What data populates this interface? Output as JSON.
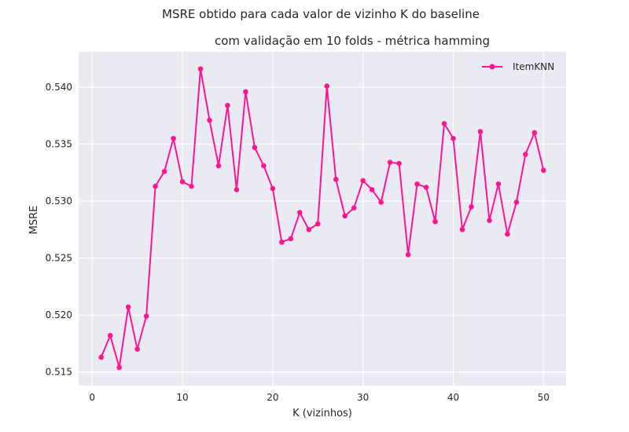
{
  "chart_data": {
    "type": "line",
    "title_line1": "MSRE obtido para cada valor de vizinho K  do baseline",
    "title_line2": "com validação em 10 folds - métrica hamming",
    "xlabel": "K (vizinhos)",
    "ylabel": "MSRE",
    "xlim": [
      -1.5,
      52.5
    ],
    "ylim": [
      0.5138,
      0.5431
    ],
    "xticks": [
      0,
      10,
      20,
      30,
      40,
      50
    ],
    "yticks": [
      0.515,
      0.52,
      0.525,
      0.53,
      0.535,
      0.54
    ],
    "ytick_labels": [
      "0.515",
      "0.520",
      "0.525",
      "0.530",
      "0.535",
      "0.540"
    ],
    "grid": true,
    "legend_position": "top-right",
    "series": [
      {
        "name": "ItemKNN",
        "color": "#ff1493",
        "marker": "circle",
        "x": [
          1,
          2,
          3,
          4,
          5,
          6,
          7,
          8,
          9,
          10,
          11,
          12,
          13,
          14,
          15,
          16,
          17,
          18,
          19,
          20,
          21,
          22,
          23,
          24,
          25,
          26,
          27,
          28,
          29,
          30,
          31,
          32,
          33,
          34,
          35,
          36,
          37,
          38,
          39,
          40,
          41,
          42,
          43,
          44,
          45,
          46,
          47,
          48,
          49,
          50
        ],
        "y": [
          0.5163,
          0.5182,
          0.5154,
          0.5207,
          0.517,
          0.5199,
          0.5313,
          0.5326,
          0.5355,
          0.5317,
          0.5313,
          0.5416,
          0.5371,
          0.5331,
          0.5384,
          0.531,
          0.5396,
          0.5347,
          0.5331,
          0.5311,
          0.5264,
          0.5267,
          0.529,
          0.5275,
          0.528,
          0.5401,
          0.5319,
          0.5287,
          0.5294,
          0.5318,
          0.531,
          0.5299,
          0.5334,
          0.5333,
          0.5253,
          0.5315,
          0.5312,
          0.5282,
          0.5368,
          0.5355,
          0.5275,
          0.5295,
          0.5361,
          0.5283,
          0.5315,
          0.5271,
          0.5299,
          0.5341,
          0.536,
          0.5327
        ]
      }
    ]
  }
}
